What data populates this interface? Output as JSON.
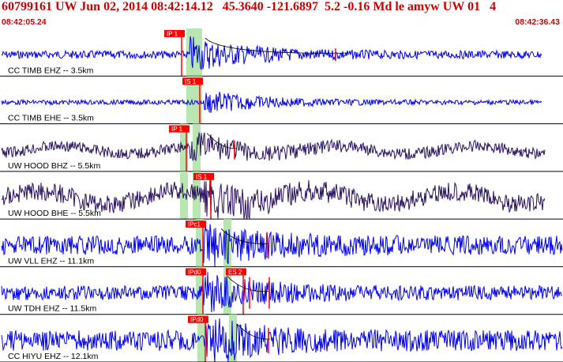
{
  "header": {
    "title": "60799161 UW Jun 02, 2014 08:42:14.12   45.3640 -121.6897  5.2 -0.16 Md le amyw UW 01   4",
    "start_time": "08:42:05.24",
    "end_time": "08:42:36.43"
  },
  "colors": {
    "header_text": "#cc0000",
    "pick_box": "#ff0000",
    "pick_window": "#b8e6b0",
    "trace_blue": "#0000ee",
    "trace_purple": "#2a1060",
    "separator": "#000000"
  },
  "traces": [
    {
      "label": "CC TIMB EHZ -- 3.5km",
      "picks": [
        "IP 1"
      ],
      "color": "blue"
    },
    {
      "label": "CC TIMB EHE -- 3.5km",
      "picks": [
        "IS 1"
      ],
      "color": "blue"
    },
    {
      "label": "UW HOOD BHZ -- 5.5km",
      "picks": [
        "IP 1"
      ],
      "color": "purple"
    },
    {
      "label": "UW HOOD BHE -- 5.5km",
      "picks": [
        "IS 1"
      ],
      "color": "purple"
    },
    {
      "label": "UW VLL EHZ -- 11.1km",
      "picks": [
        "IPc1"
      ],
      "color": "blue"
    },
    {
      "label": "UW TDH EHZ -- 11.5km",
      "picks": [
        "IPd0",
        "ES 2"
      ],
      "color": "blue"
    },
    {
      "label": "CC HIYU EHZ -- 12.1km",
      "picks": [
        "IPd0"
      ],
      "color": "blue"
    }
  ]
}
